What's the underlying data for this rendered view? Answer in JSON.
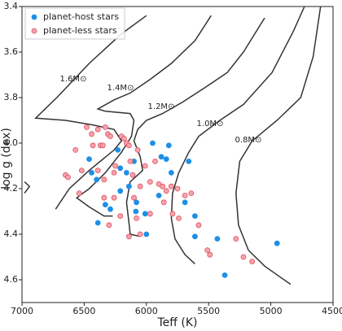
{
  "chart_data": {
    "type": "scatter",
    "xlabel": "Teff (K)",
    "ylabel": "log g (dex)",
    "xlim": [
      7000,
      4500
    ],
    "ylim": [
      3.4,
      4.7
    ],
    "xticks": [
      7000,
      6500,
      6000,
      5500,
      5000,
      4500
    ],
    "yticks": [
      3.4,
      3.6,
      3.8,
      {
        "value": 4.0,
        "label": "4.0"
      },
      4.2,
      4.4,
      4.6
    ],
    "y_inverted": true,
    "legend_position": "upper left",
    "series": [
      {
        "name": "planet-host stars",
        "color": "#1e8fe6",
        "edge": "#1e8fe6",
        "x": [
          6460,
          6440,
          6400,
          6390,
          6330,
          6290,
          6230,
          6210,
          6210,
          6160,
          6140,
          6100,
          6080,
          6010,
          5950,
          5900,
          5880,
          5840,
          5820,
          5800,
          5690,
          5660,
          5610,
          5610,
          5430,
          5370,
          4950,
          6000,
          6085
        ],
        "values": [
          4.07,
          4.13,
          4.16,
          4.35,
          4.27,
          4.29,
          4.03,
          4.11,
          4.21,
          4.13,
          4.19,
          4.08,
          4.26,
          4.31,
          4.0,
          4.23,
          4.06,
          4.07,
          4.01,
          4.13,
          4.26,
          4.08,
          4.32,
          4.41,
          4.42,
          4.58,
          4.44,
          4.4,
          4.3
        ]
      },
      {
        "name": "planet-less stars",
        "color": "#f5a3ab",
        "edge": "#e0505e",
        "x": [
          6650,
          6630,
          6570,
          6540,
          6480,
          6440,
          6430,
          6390,
          6370,
          6350,
          6330,
          6310,
          6290,
          6340,
          6340,
          6300,
          6260,
          6260,
          6250,
          6200,
          6180,
          6160,
          6140,
          6130,
          6110,
          6100,
          6070,
          6050,
          6080,
          6010,
          5970,
          5970,
          5930,
          5900,
          5870,
          5860,
          5840,
          5800,
          5790,
          5750,
          5740,
          5690,
          5640,
          5580,
          5510,
          5490,
          5280,
          5220,
          5150,
          6050,
          6140,
          6210,
          6390,
          6520
        ],
        "values": [
          4.14,
          4.15,
          4.03,
          4.22,
          3.93,
          3.96,
          4.01,
          3.94,
          4.01,
          4.01,
          3.93,
          3.96,
          3.97,
          4.16,
          4.24,
          4.36,
          4.13,
          4.24,
          4.1,
          3.97,
          3.98,
          4.0,
          4.01,
          4.08,
          4.14,
          4.24,
          4.03,
          4.19,
          4.33,
          4.1,
          4.17,
          4.31,
          4.08,
          4.18,
          4.19,
          4.26,
          4.21,
          4.19,
          4.31,
          4.2,
          4.33,
          4.23,
          4.22,
          4.36,
          4.47,
          4.49,
          4.42,
          4.5,
          4.52,
          4.4,
          4.41,
          4.32,
          4.12,
          4.12
        ]
      }
    ],
    "tracks": [
      {
        "label": "1.6M⊙",
        "x": [
          6000,
          6200,
          6460,
          6720,
          6890,
          6650,
          6430,
          6260,
          6200,
          6260,
          6460,
          6620,
          6730,
          null,
          6980,
          6940,
          6980
        ],
        "y": [
          3.44,
          3.52,
          3.65,
          3.8,
          3.89,
          3.9,
          3.92,
          3.94,
          3.99,
          4.03,
          4.12,
          4.2,
          4.29,
          null,
          4.17,
          4.19,
          4.22
        ]
      },
      {
        "label": "1.4M⊙",
        "x": [
          5480,
          5610,
          5800,
          5970,
          6130,
          6260,
          6390,
          6330,
          6130,
          6100,
          6120,
          6200,
          6330,
          6460,
          6560,
          6460,
          6340,
          6270
        ],
        "y": [
          3.44,
          3.55,
          3.65,
          3.72,
          3.78,
          3.81,
          3.85,
          3.86,
          3.87,
          3.9,
          3.97,
          4.04,
          4.13,
          4.2,
          4.24,
          4.28,
          4.32,
          4.32
        ]
      },
      {
        "label": "1.2M⊙",
        "x": [
          5050,
          5220,
          5350,
          5540,
          5710,
          5870,
          6000,
          6070,
          6100,
          6050,
          6030,
          6130,
          6160,
          6140,
          6130,
          6050
        ],
        "y": [
          3.45,
          3.6,
          3.69,
          3.76,
          3.82,
          3.87,
          3.9,
          3.94,
          3.99,
          4.06,
          4.12,
          4.17,
          4.26,
          4.35,
          4.4,
          4.41
        ]
      },
      {
        "label": "1.0M⊙",
        "x": [
          4730,
          4820,
          4990,
          5220,
          5410,
          5580,
          5660,
          5740,
          5790,
          5800,
          5770,
          5690,
          5610
        ],
        "y": [
          3.4,
          3.51,
          3.69,
          3.83,
          3.9,
          3.97,
          4.04,
          4.13,
          4.22,
          4.33,
          4.42,
          4.49,
          4.53
        ]
      },
      {
        "label": "0.8M⊙",
        "x": [
          4600,
          4660,
          4760,
          4950,
          5150,
          5250,
          5280,
          5260,
          5180,
          5050,
          4920,
          4840
        ],
        "y": [
          3.4,
          3.62,
          3.8,
          3.9,
          3.99,
          4.08,
          4.22,
          4.36,
          4.47,
          4.54,
          4.59,
          4.62
        ]
      }
    ]
  }
}
